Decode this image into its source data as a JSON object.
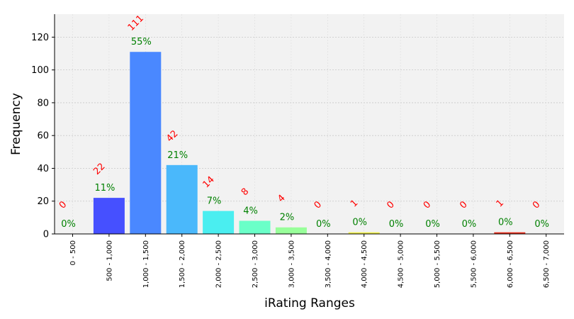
{
  "chart_data": {
    "type": "bar",
    "xlabel": "iRating Ranges",
    "ylabel": "Frequency",
    "ylim": [
      0,
      134
    ],
    "yticks": [
      0,
      20,
      40,
      60,
      80,
      100,
      120
    ],
    "grid": true,
    "categories": [
      "0 - 500",
      "500 - 1,000",
      "1,000 - 1,500",
      "1,500 - 2,000",
      "2,000 - 2,500",
      "2,500 - 3,000",
      "3,000 - 3,500",
      "3,500 - 4,000",
      "4,000 - 4,500",
      "4,500 - 5,000",
      "5,000 - 5,500",
      "5,500 - 6,000",
      "6,000 - 6,500",
      "6,500 - 7,000"
    ],
    "values": [
      0,
      22,
      111,
      42,
      14,
      8,
      4,
      0,
      1,
      0,
      0,
      0,
      1,
      0
    ],
    "count_labels": [
      "0",
      "22",
      "111",
      "42",
      "14",
      "8",
      "4",
      "0",
      "1",
      "0",
      "0",
      "0",
      "1",
      "0"
    ],
    "percent_labels": [
      "0%",
      "11%",
      "55%",
      "21%",
      "7%",
      "4%",
      "2%",
      "0%",
      "0%",
      "0%",
      "0%",
      "0%",
      "0%",
      "0%"
    ],
    "colors": [
      "#3a1cff",
      "#4650ff",
      "#4a88ff",
      "#4ab8fb",
      "#4aeef0",
      "#6affc8",
      "#98ff9a",
      "#c8ff6a",
      "#f0f04a",
      "#ffc83a",
      "#ff9a30",
      "#ff6428",
      "#e8301e",
      "#cc1010"
    ],
    "count_label_color": "#ff0000",
    "percent_label_color": "#008000",
    "plot_background": "#f2f2f2"
  }
}
